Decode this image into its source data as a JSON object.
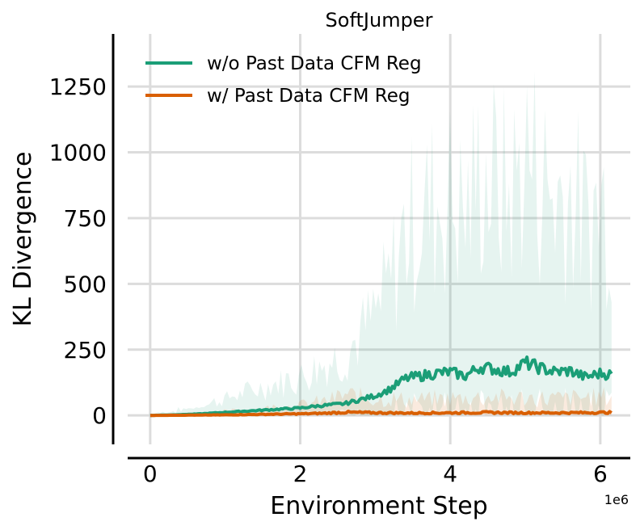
{
  "chart_data": {
    "type": "line",
    "title": "SoftJumper",
    "xlabel": "Environment Step",
    "ylabel": "KL Divergence",
    "x_offset_label": "1e6",
    "xlim": [
      -0.3,
      6.4
    ],
    "ylim": [
      -110,
      1450
    ],
    "xticks": [
      0,
      2,
      4,
      6
    ],
    "xtick_labels": [
      "0",
      "2",
      "4",
      "6"
    ],
    "yticks": [
      0,
      250,
      500,
      750,
      1000,
      1250
    ],
    "ytick_labels": [
      "0",
      "250",
      "500",
      "750",
      "1000",
      "1250"
    ],
    "grid": true,
    "legend_position": "top-left",
    "colors": {
      "series_0": "#1b9e77",
      "series_1": "#d95f02",
      "grid": "#dcdcdc",
      "axis": "#000000"
    },
    "series": [
      {
        "name": "w/o Past Data CFM Reg",
        "x": [
          0,
          0.3,
          0.6,
          0.9,
          1.2,
          1.5,
          1.8,
          2.0,
          2.2,
          2.4,
          2.6,
          2.8,
          3.0,
          3.2,
          3.4,
          3.6,
          3.8,
          4.0,
          4.2,
          4.4,
          4.6,
          4.8,
          5.0,
          5.2,
          5.4,
          5.6,
          5.8,
          6.0,
          6.15
        ],
        "y": [
          0,
          2,
          5,
          10,
          15,
          20,
          25,
          28,
          35,
          40,
          45,
          60,
          75,
          100,
          140,
          150,
          160,
          165,
          150,
          185,
          175,
          165,
          200,
          180,
          165,
          170,
          145,
          160,
          155
        ]
      },
      {
        "name": "w/ Past Data CFM Reg",
        "x": [
          0,
          0.5,
          1.0,
          1.5,
          2.0,
          2.3,
          2.6,
          3.0,
          3.5,
          4.0,
          4.5,
          5.0,
          5.5,
          6.0,
          6.15
        ],
        "y": [
          0,
          1,
          2,
          4,
          6,
          8,
          12,
          10,
          9,
          10,
          11,
          10,
          10,
          11,
          11
        ]
      }
    ]
  }
}
